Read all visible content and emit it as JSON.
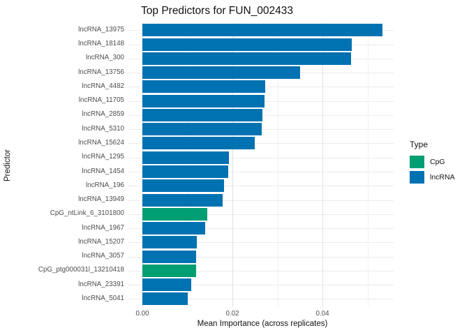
{
  "title": "Top Predictors for FUN_002433",
  "colors": {
    "CpG": "#009E73",
    "lncRNA": "#0072B2",
    "grid_major": "#e2e2e2",
    "grid_minor": "#f2f2f2",
    "grid_row": "#ebebeb",
    "axis_text": "#4d4d4d",
    "text": "#111111"
  },
  "chart_data": {
    "type": "bar",
    "orientation": "horizontal",
    "title": "Top Predictors for FUN_002433",
    "xlabel": "Mean Importance (across replicates)",
    "ylabel": "Predictor",
    "xlim": [
      -0.0031,
      0.0558
    ],
    "xticks": [
      0,
      0.02,
      0.04
    ],
    "xtick_labels": [
      "0.00",
      "0.02",
      "0.04"
    ],
    "minor_xticks": [
      0.01,
      0.03,
      0.05
    ],
    "grid": true,
    "legend": {
      "title": "Type",
      "position": "right",
      "entries": [
        {
          "label": "CpG",
          "color": "#009E73"
        },
        {
          "label": "lncRNA",
          "color": "#0072B2"
        }
      ]
    },
    "categories": [
      "lncRNA_13975",
      "lncRNA_18148",
      "lncRNA_300",
      "lncRNA_13756",
      "lncRNA_4482",
      "lncRNA_11705",
      "lncRNA_2859",
      "lncRNA_5310",
      "lncRNA_15624",
      "lncRNA_1295",
      "lncRNA_1454",
      "lncRNA_196",
      "lncRNA_13949",
      "CpG_ntLink_6_3101800",
      "lncRNA_1967",
      "lncRNA_15207",
      "lncRNA_3057",
      "CpG_ptg000031l_13210418",
      "lncRNA_23391",
      "lncRNA_5041"
    ],
    "values": [
      0.0534,
      0.0465,
      0.0463,
      0.035,
      0.0273,
      0.0272,
      0.0267,
      0.0265,
      0.0249,
      0.0192,
      0.0191,
      0.0181,
      0.0178,
      0.0144,
      0.0139,
      0.0121,
      0.012,
      0.0119,
      0.0108,
      0.01
    ],
    "types": [
      "lncRNA",
      "lncRNA",
      "lncRNA",
      "lncRNA",
      "lncRNA",
      "lncRNA",
      "lncRNA",
      "lncRNA",
      "lncRNA",
      "lncRNA",
      "lncRNA",
      "lncRNA",
      "lncRNA",
      "CpG",
      "lncRNA",
      "lncRNA",
      "lncRNA",
      "CpG",
      "lncRNA",
      "lncRNA"
    ]
  }
}
